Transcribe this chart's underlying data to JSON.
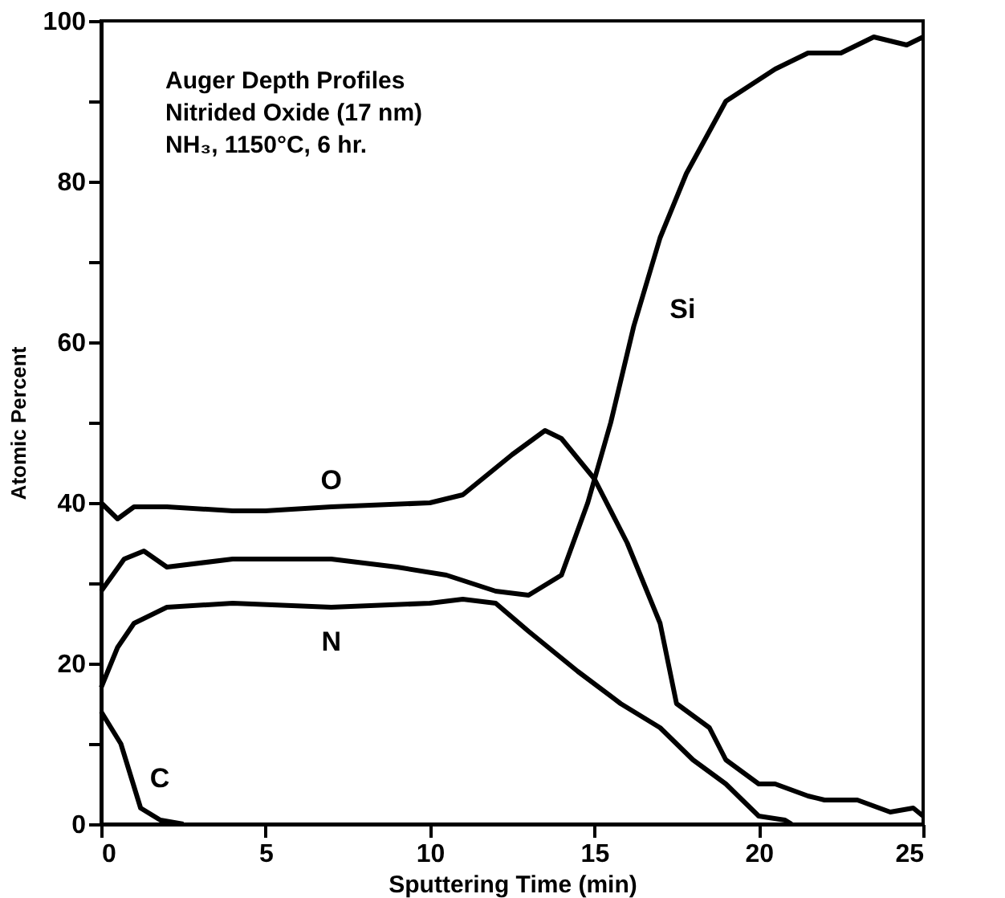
{
  "chart_data": {
    "type": "line",
    "xlabel": "Sputtering Time (min)",
    "ylabel": "Atomic Percent",
    "xlim": [
      0,
      25
    ],
    "ylim": [
      0,
      100
    ],
    "xticks": [
      0,
      5,
      10,
      15,
      20,
      25
    ],
    "yticks": [
      0,
      {
        "value": 10,
        "label": null
      },
      20,
      {
        "value": 30,
        "label": null
      },
      40,
      {
        "value": 50,
        "label": null
      },
      60,
      {
        "value": 70,
        "label": null
      },
      80,
      {
        "value": 90,
        "label": null
      },
      100
    ],
    "grid": false,
    "marker": "none",
    "line_style": "solid",
    "annotations": [
      "Auger Depth Profiles",
      "Nitrided Oxide (17 nm)",
      "NH₃, 1150°C, 6 hr."
    ],
    "series": [
      {
        "name": "O",
        "color": "#000000",
        "x": [
          0,
          0.5,
          1,
          2,
          4,
          5,
          7,
          10,
          11,
          12.5,
          13.5,
          14,
          15,
          16,
          17,
          17.5,
          18.5,
          19,
          20,
          20.5,
          21.5,
          22,
          23,
          24,
          24.7,
          25
        ],
        "values": [
          40,
          38,
          39.5,
          39.5,
          39,
          39,
          39.5,
          40,
          41,
          46,
          49,
          48,
          43,
          35,
          25,
          15,
          12,
          8,
          5,
          5,
          3.5,
          3,
          3,
          1.5,
          2,
          1
        ]
      },
      {
        "name": "Si",
        "color": "#000000",
        "x": [
          0,
          0.7,
          1.3,
          2,
          4,
          7,
          9,
          10.5,
          12,
          13,
          14,
          14.8,
          15.5,
          16.2,
          17,
          17.8,
          19,
          20.5,
          21.5,
          22.5,
          23.5,
          24.5,
          25
        ],
        "values": [
          29,
          33,
          34,
          32,
          33,
          33,
          32,
          31,
          29,
          28.5,
          31,
          40,
          50,
          62,
          73,
          81,
          90,
          94,
          96,
          96,
          98,
          97,
          98
        ]
      },
      {
        "name": "N",
        "color": "#000000",
        "x": [
          0,
          0.5,
          1,
          2,
          4,
          7,
          10,
          11,
          12,
          13,
          14.5,
          15.8,
          17,
          18,
          19,
          19.5,
          20,
          20.8,
          21
        ],
        "values": [
          17,
          22,
          25,
          27,
          27.5,
          27,
          27.5,
          28,
          27.5,
          24,
          19,
          15,
          12,
          8,
          5,
          3,
          1,
          0.5,
          0
        ]
      },
      {
        "name": "C",
        "color": "#000000",
        "x": [
          0,
          0.6,
          1.2,
          1.8,
          2.5
        ],
        "values": [
          14,
          10,
          2,
          0.5,
          0
        ]
      }
    ]
  }
}
